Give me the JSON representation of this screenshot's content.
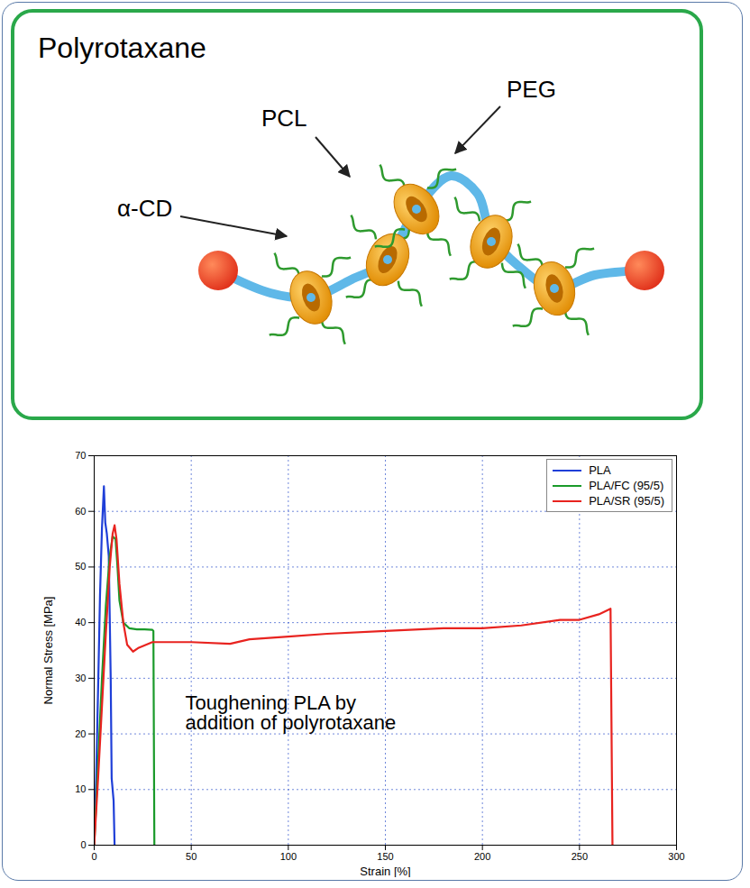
{
  "diagram": {
    "title": "Polyrotaxane",
    "labels": [
      "PEG",
      "PCL",
      "α-CD"
    ]
  },
  "chart_data": {
    "type": "line",
    "x_label": "Strain [%]",
    "y_label": "Normal Stress [MPa]",
    "annotation": "Toughening PLA by\naddition of polyrotaxane",
    "xlim": [
      0,
      300
    ],
    "xticks": [
      0,
      50,
      100,
      150,
      200,
      250,
      300
    ],
    "ylim": [
      0,
      70
    ],
    "yticks": [
      0,
      10,
      20,
      30,
      40,
      50,
      60,
      70
    ],
    "grid": true,
    "legend": "upper right",
    "series": [
      {
        "name": "PLA",
        "color": "#1f3fd8",
        "x": [
          0,
          1,
          2,
          3,
          4,
          5,
          5.7,
          6.5,
          7.5,
          8.5,
          9,
          10,
          10.5
        ],
        "values": [
          0,
          12,
          28,
          45,
          57,
          64.5,
          58,
          56,
          52,
          30,
          12,
          8,
          0
        ]
      },
      {
        "name": "PLA/FC (95/5)",
        "color": "#1a9a2a",
        "x": [
          0,
          2,
          4,
          6,
          8,
          9.5,
          11,
          12,
          13,
          15,
          18,
          22,
          26,
          30,
          30.5,
          31
        ],
        "values": [
          0,
          15,
          30,
          43,
          52,
          55.5,
          55,
          50,
          44,
          40,
          39,
          38.8,
          38.8,
          38.7,
          38.5,
          0
        ]
      },
      {
        "name": "PLA/SR (95/5)",
        "color": "#e8231f",
        "x": [
          0,
          2,
          4,
          6,
          8,
          9.5,
          10.5,
          11.5,
          13,
          15,
          17,
          20,
          23,
          30,
          50,
          70,
          80,
          100,
          120,
          150,
          180,
          200,
          220,
          240,
          250,
          260,
          266,
          267
        ],
        "values": [
          0,
          12,
          25,
          38,
          50,
          56,
          57.5,
          55,
          47,
          40,
          36,
          34.8,
          35.5,
          36.5,
          36.5,
          36.2,
          37,
          37.5,
          38,
          38.5,
          39,
          39,
          39.5,
          40.5,
          40.5,
          41.5,
          42.5,
          0
        ]
      }
    ]
  }
}
